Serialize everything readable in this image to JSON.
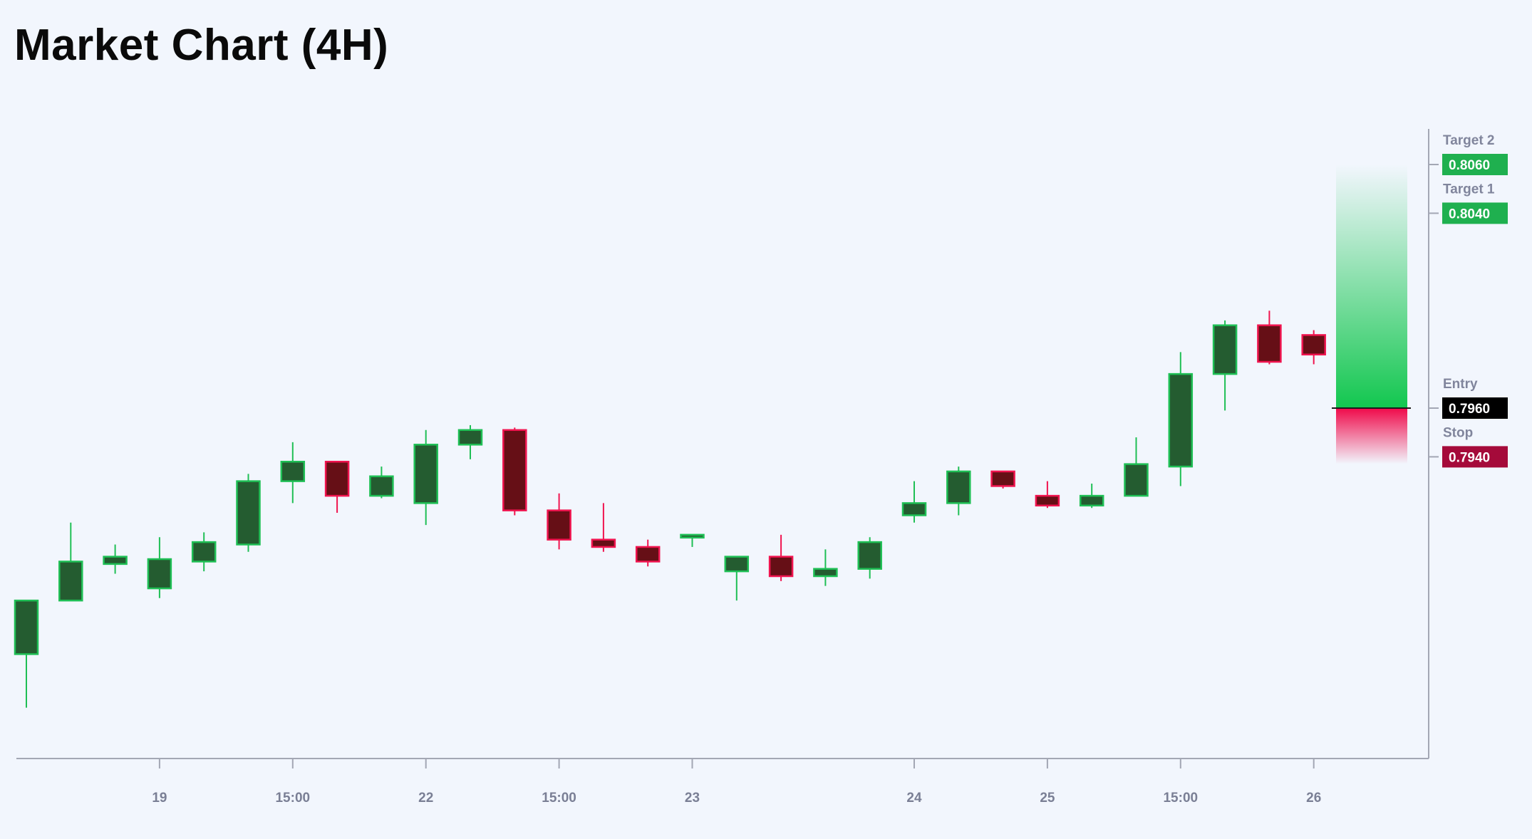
{
  "title": "Market Chart (4H)",
  "chart_data": {
    "type": "candlestick",
    "title": "Market Chart (4H)",
    "xlabel": "",
    "ylabel": "",
    "grid": false,
    "x_tick_labels": [
      {
        "candle_index": 3,
        "label": "19"
      },
      {
        "candle_index": 6,
        "label": "15:00"
      },
      {
        "candle_index": 9,
        "label": "22"
      },
      {
        "candle_index": 12,
        "label": "15:00"
      },
      {
        "candle_index": 15,
        "label": "23"
      },
      {
        "candle_index": 20,
        "label": "24"
      },
      {
        "candle_index": 23,
        "label": "25"
      },
      {
        "candle_index": 26,
        "label": "15:00"
      },
      {
        "candle_index": 29,
        "label": "26"
      }
    ],
    "candles": [
      {
        "o": 0.7859,
        "h": 0.7881,
        "l": 0.7837,
        "c": 0.7881
      },
      {
        "o": 0.7881,
        "h": 0.7913,
        "l": 0.7881,
        "c": 0.7897
      },
      {
        "o": 0.7896,
        "h": 0.7904,
        "l": 0.7892,
        "c": 0.7899
      },
      {
        "o": 0.7886,
        "h": 0.7907,
        "l": 0.7882,
        "c": 0.7898
      },
      {
        "o": 0.7897,
        "h": 0.7909,
        "l": 0.7893,
        "c": 0.7905
      },
      {
        "o": 0.7904,
        "h": 0.7933,
        "l": 0.7901,
        "c": 0.793
      },
      {
        "o": 0.793,
        "h": 0.7946,
        "l": 0.7921,
        "c": 0.7938
      },
      {
        "o": 0.7938,
        "h": 0.7938,
        "l": 0.7917,
        "c": 0.7924
      },
      {
        "o": 0.7924,
        "h": 0.7936,
        "l": 0.7923,
        "c": 0.7932
      },
      {
        "o": 0.7921,
        "h": 0.7951,
        "l": 0.7912,
        "c": 0.7945
      },
      {
        "o": 0.7945,
        "h": 0.7953,
        "l": 0.7939,
        "c": 0.7951
      },
      {
        "o": 0.7951,
        "h": 0.7952,
        "l": 0.7916,
        "c": 0.7918
      },
      {
        "o": 0.7918,
        "h": 0.7925,
        "l": 0.7902,
        "c": 0.7906
      },
      {
        "o": 0.7906,
        "h": 0.7921,
        "l": 0.7901,
        "c": 0.7903
      },
      {
        "o": 0.7903,
        "h": 0.7906,
        "l": 0.7895,
        "c": 0.7897
      },
      {
        "o": 0.7907,
        "h": 0.7908,
        "l": 0.7903,
        "c": 0.7908
      },
      {
        "o": 0.7893,
        "h": 0.7899,
        "l": 0.7881,
        "c": 0.7899
      },
      {
        "o": 0.7899,
        "h": 0.7908,
        "l": 0.7889,
        "c": 0.7891
      },
      {
        "o": 0.7891,
        "h": 0.7902,
        "l": 0.7887,
        "c": 0.7894
      },
      {
        "o": 0.7894,
        "h": 0.7907,
        "l": 0.789,
        "c": 0.7905
      },
      {
        "o": 0.7916,
        "h": 0.793,
        "l": 0.7913,
        "c": 0.7921
      },
      {
        "o": 0.7921,
        "h": 0.7936,
        "l": 0.7916,
        "c": 0.7934
      },
      {
        "o": 0.7934,
        "h": 0.7934,
        "l": 0.7927,
        "c": 0.7928
      },
      {
        "o": 0.7924,
        "h": 0.793,
        "l": 0.7919,
        "c": 0.792
      },
      {
        "o": 0.792,
        "h": 0.7929,
        "l": 0.7919,
        "c": 0.7924
      },
      {
        "o": 0.7924,
        "h": 0.7948,
        "l": 0.7924,
        "c": 0.7937
      },
      {
        "o": 0.7936,
        "h": 0.7983,
        "l": 0.7928,
        "c": 0.7974
      },
      {
        "o": 0.7974,
        "h": 0.7996,
        "l": 0.7959,
        "c": 0.7994
      },
      {
        "o": 0.7994,
        "h": 0.8,
        "l": 0.7978,
        "c": 0.7979
      },
      {
        "o": 0.799,
        "h": 0.7992,
        "l": 0.7978,
        "c": 0.7982
      }
    ],
    "levels": [
      {
        "name": "Target 2",
        "value": "0.8060",
        "price": 0.806,
        "color": "#1fb04f"
      },
      {
        "name": "Target 1",
        "value": "0.8040",
        "price": 0.804,
        "color": "#1fb04f"
      },
      {
        "name": "Entry",
        "value": "0.7960",
        "price": 0.796,
        "color": "#000000"
      },
      {
        "name": "Stop",
        "value": "0.7940",
        "price": 0.794,
        "color": "#a50a3a"
      }
    ],
    "trade_zone": {
      "entry": 0.796,
      "target": 0.806,
      "stop": 0.794
    },
    "colors": {
      "up_body": "#245c30",
      "up_border": "#1fbf55",
      "down_body": "#660f16",
      "down_border": "#f0144f",
      "axis": "#a3a7b4",
      "background": "#f2f6fd"
    }
  }
}
